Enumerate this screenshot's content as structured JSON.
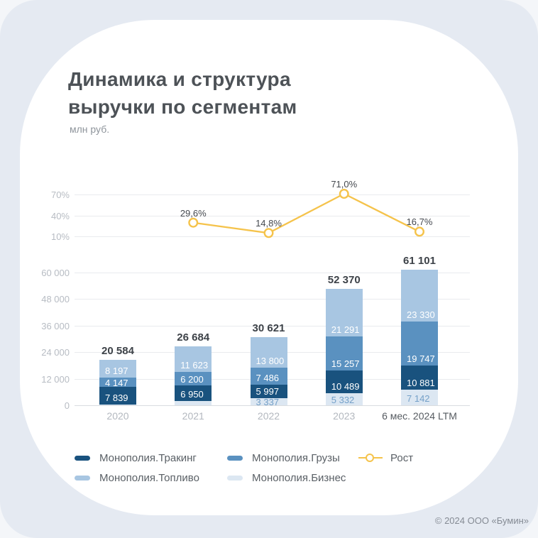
{
  "header": {
    "title_line1": "Динамика и структура",
    "title_line2": "выручки по сегментам",
    "units": "млн руб."
  },
  "chart_data": {
    "type": "combo",
    "title": "Динамика и структура выручки по сегментам",
    "units": "млн руб.",
    "categories": [
      "2020",
      "2021",
      "2022",
      "2023",
      "6 мес. 2024 LTM"
    ],
    "stacked_bar": {
      "type": "bar",
      "stacked": true,
      "grid": true,
      "ylim": [
        0,
        66000
      ],
      "yticks": [
        0,
        12000,
        24000,
        36000,
        48000,
        60000
      ],
      "ytick_labels": [
        "0",
        "12 000",
        "24 000",
        "36 000",
        "48 000",
        "60 000"
      ],
      "series": [
        {
          "name": "Монополия.Бизнес",
          "color": "#DCE7F2",
          "label_color": "#74A0C8",
          "values": [
            401,
            1911,
            3337,
            5332,
            7142
          ],
          "value_labels": [
            "",
            "",
            "3 337",
            "5 332",
            "7 142"
          ]
        },
        {
          "name": "Монополия.Тракинг",
          "color": "#19527E",
          "label_color": "#FFFFFF",
          "values": [
            7839,
            6950,
            5997,
            10489,
            10881
          ],
          "value_labels": [
            "7 839",
            "6 950",
            "5 997",
            "10 489",
            "10 881"
          ]
        },
        {
          "name": "Монополия.Грузы",
          "color": "#5A91C0",
          "label_color": "#FFFFFF",
          "values": [
            4147,
            6200,
            7486,
            15257,
            19747
          ],
          "value_labels": [
            "4 147",
            "6 200",
            "7 486",
            "15 257",
            "19 747"
          ]
        },
        {
          "name": "Монополия.Топливо",
          "color": "#A8C6E2",
          "label_color": "#FFFFFF",
          "values": [
            8197,
            11623,
            13800,
            21291,
            23330
          ],
          "value_labels": [
            "8 197",
            "11 623",
            "13 800",
            "21 291",
            "23 330"
          ]
        }
      ],
      "totals": [
        20584,
        26684,
        30621,
        52370,
        61101
      ],
      "total_labels": [
        "20 584",
        "26 684",
        "30 621",
        "52 370",
        "61 101"
      ]
    },
    "growth_line": {
      "type": "line",
      "name": "Рост",
      "color": "#F5C34B",
      "yticks": [
        10,
        40,
        70
      ],
      "ytick_labels": [
        "10%",
        "40%",
        "70%"
      ],
      "values": [
        null,
        29.6,
        14.8,
        71.0,
        16.7
      ],
      "value_labels": [
        "",
        "29,6%",
        "14,8%",
        "71,0%",
        "16,7%"
      ]
    },
    "x_axis": {
      "labels": [
        "2020",
        "2021",
        "2022",
        "2023",
        "6 мес. 2024 LTM"
      ],
      "highlight_last": true
    },
    "legend_position": "bottom"
  },
  "legend": {
    "items": [
      {
        "label": "Монополия.Тракинг",
        "marker": "pill",
        "color": "#19527E"
      },
      {
        "label": "Монополия.Грузы",
        "marker": "pill",
        "color": "#5A91C0"
      },
      {
        "label": "Рост",
        "marker": "line",
        "color": "#F5C34B"
      },
      {
        "label": "Монополия.Топливо",
        "marker": "pill",
        "color": "#A8C6E2"
      },
      {
        "label": "Монополия.Бизнес",
        "marker": "pill",
        "color": "#DCE7F2"
      }
    ]
  },
  "footer": {
    "copyright": "© 2024 ООО «Бумин»"
  }
}
